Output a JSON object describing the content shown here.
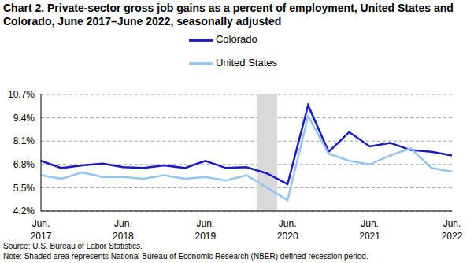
{
  "chart_data": {
    "type": "line",
    "title": "Chart 2. Private-sector gross job gains as a percent of employment, United States and Colorado, June 2017–June 2022, seasonally adjusted",
    "categories": [
      "Jun.\n2017",
      null,
      null,
      null,
      "Jun.\n2018",
      null,
      null,
      null,
      "Jun.\n2019",
      null,
      null,
      null,
      "Jun.\n2020",
      null,
      null,
      null,
      "Jun.\n2021",
      null,
      null,
      null,
      "Jun.\n2022"
    ],
    "series": [
      {
        "name": "Colorado",
        "color": "#1a1ac8",
        "values": [
          7.0,
          6.6,
          6.75,
          6.85,
          6.65,
          6.6,
          6.75,
          6.6,
          7.0,
          6.6,
          6.65,
          6.3,
          5.7,
          10.1,
          7.5,
          8.6,
          7.8,
          8.0,
          7.6,
          7.5,
          7.3
        ]
      },
      {
        "name": "United States",
        "color": "#92c5f0",
        "values": [
          6.2,
          6.0,
          6.35,
          6.1,
          6.1,
          6.0,
          6.2,
          6.0,
          6.1,
          5.9,
          6.2,
          5.5,
          4.8,
          9.5,
          7.4,
          7.0,
          6.8,
          7.3,
          7.7,
          6.6,
          6.4
        ]
      }
    ],
    "ylim": [
      4.2,
      10.7
    ],
    "yticks": [
      {
        "value": 4.2,
        "label": "4.2%"
      },
      {
        "value": 5.5,
        "label": "5.5%"
      },
      {
        "value": 6.8,
        "label": "6.8%"
      },
      {
        "value": 8.1,
        "label": "8.1%"
      },
      {
        "value": 9.4,
        "label": "9.4%"
      },
      {
        "value": 10.7,
        "label": "10.7%"
      }
    ],
    "grid": true,
    "legend": "top",
    "recession_band": {
      "x_start": 10.5,
      "x_end": 11.5
    },
    "notes": [
      "Source: U.S. Bureau of Labor Statistics.",
      "Note: Shaded area represents National Bureau of Economic Research (NBER) defined recession period."
    ]
  }
}
